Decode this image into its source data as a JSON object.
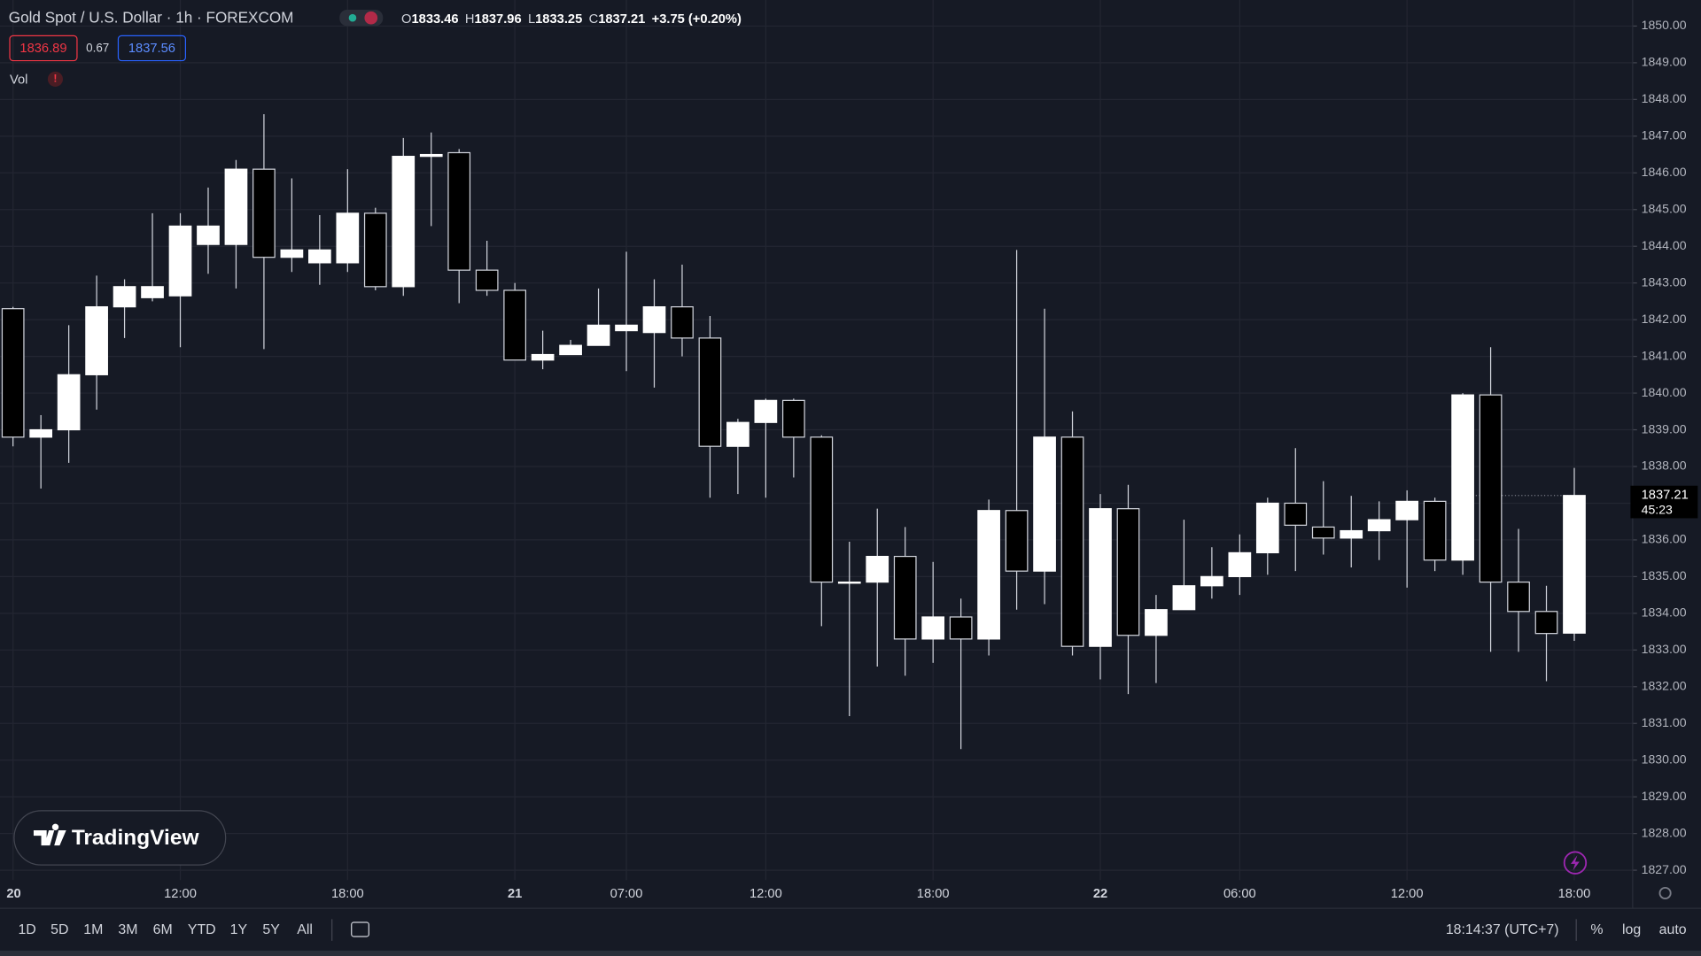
{
  "header": {
    "symbol": "Gold Spot / U.S. Dollar · 1h · FOREXCOM",
    "ohlc": [
      {
        "label": "O",
        "value": "1833.46"
      },
      {
        "label": "H",
        "value": "1837.96"
      },
      {
        "label": "L",
        "value": "1833.25"
      },
      {
        "label": "C",
        "value": "1837.21"
      }
    ],
    "change": "+3.75 (+0.20%)",
    "bid": "1836.89",
    "spread": "0.67",
    "ask": "1837.56",
    "indicator": "Vol"
  },
  "chart_data": {
    "type": "candlestick",
    "categories": [
      "20",
      null,
      null,
      null,
      null,
      null,
      "12:00",
      null,
      null,
      null,
      null,
      null,
      "18:00",
      null,
      null,
      null,
      null,
      null,
      "21",
      null,
      null,
      null,
      "07:00",
      null,
      null,
      null,
      null,
      "12:00",
      null,
      null,
      null,
      null,
      null,
      "18:00",
      null,
      null,
      null,
      null,
      null,
      "22",
      null,
      null,
      null,
      null,
      "06:00",
      null,
      null,
      null,
      null,
      null,
      "12:00",
      null,
      null,
      null,
      null,
      null,
      "18:00"
    ],
    "open": [
      1842.3,
      1838.8,
      1839.0,
      1840.5,
      1842.35,
      1842.6,
      1842.65,
      1844.05,
      1844.05,
      1846.1,
      1843.7,
      1843.55,
      1843.55,
      1844.9,
      1842.9,
      1846.45,
      1846.55,
      1843.35,
      1842.8,
      1840.9,
      1841.05,
      1841.3,
      1841.7,
      1841.65,
      1842.35,
      1841.5,
      1838.55,
      1839.2,
      1839.8,
      1838.8,
      1834.85,
      1834.85,
      1835.55,
      1833.3,
      1833.9,
      1833.3,
      1836.8,
      1835.15,
      1838.8,
      1833.1,
      1836.85,
      1833.4,
      1834.1,
      1834.75,
      1835.0,
      1835.65,
      1837.0,
      1836.35,
      1836.05,
      1836.25,
      1836.55,
      1837.05,
      1835.45,
      1839.95,
      1834.85,
      1834.05,
      1833.46
    ],
    "high": [
      1842.35,
      1839.4,
      1841.85,
      1843.2,
      1843.1,
      1844.9,
      1844.9,
      1845.6,
      1846.35,
      1847.6,
      1845.85,
      1844.85,
      1846.1,
      1845.05,
      1846.95,
      1847.1,
      1846.65,
      1844.15,
      1843.0,
      1841.7,
      1841.45,
      1842.85,
      1843.85,
      1843.1,
      1843.5,
      1842.1,
      1839.3,
      1839.85,
      1839.85,
      1838.85,
      1835.95,
      1836.85,
      1836.35,
      1835.4,
      1834.4,
      1837.1,
      1843.9,
      1842.3,
      1839.5,
      1837.25,
      1837.5,
      1834.5,
      1836.55,
      1835.8,
      1836.15,
      1837.15,
      1838.5,
      1837.6,
      1837.2,
      1837.05,
      1837.35,
      1837.15,
      1840.0,
      1841.25,
      1836.3,
      1834.75,
      1837.96
    ],
    "low": [
      1838.55,
      1837.4,
      1838.1,
      1839.55,
      1841.5,
      1842.5,
      1841.25,
      1843.25,
      1842.85,
      1841.2,
      1843.3,
      1842.95,
      1843.3,
      1842.8,
      1842.65,
      1844.55,
      1842.45,
      1842.65,
      1840.9,
      1840.65,
      1841.05,
      1841.3,
      1840.6,
      1840.15,
      1841.0,
      1837.15,
      1837.25,
      1837.15,
      1837.7,
      1833.65,
      1831.2,
      1832.55,
      1832.3,
      1832.65,
      1830.3,
      1832.85,
      1834.1,
      1834.25,
      1832.85,
      1832.2,
      1831.8,
      1832.1,
      1834.1,
      1834.4,
      1834.5,
      1835.05,
      1835.15,
      1835.6,
      1835.25,
      1835.45,
      1834.7,
      1835.15,
      1835.05,
      1832.95,
      1832.95,
      1832.15,
      1833.25
    ],
    "close": [
      1838.8,
      1839.0,
      1840.5,
      1842.35,
      1842.9,
      1842.9,
      1844.55,
      1844.55,
      1846.1,
      1843.7,
      1843.9,
      1843.9,
      1844.9,
      1842.9,
      1846.45,
      1846.5,
      1843.35,
      1842.8,
      1840.9,
      1841.05,
      1841.3,
      1841.85,
      1841.85,
      1842.35,
      1841.5,
      1838.55,
      1839.2,
      1839.8,
      1838.8,
      1834.85,
      1834.85,
      1835.55,
      1833.3,
      1833.9,
      1833.3,
      1836.8,
      1835.15,
      1838.8,
      1833.1,
      1836.85,
      1833.4,
      1834.1,
      1834.75,
      1835.0,
      1835.65,
      1837.0,
      1836.4,
      1836.05,
      1836.25,
      1836.55,
      1837.05,
      1835.45,
      1839.95,
      1834.85,
      1834.05,
      1833.45,
      1837.21
    ],
    "up_color": "#ffffff",
    "down_color": "#000000",
    "border_color": "#d1d4dc",
    "ylim": [
      1826.73,
      1850.71
    ],
    "yticks": [
      {
        "value": 1827,
        "label": "1827.00"
      },
      {
        "value": 1828,
        "label": "1828.00"
      },
      {
        "value": 1829,
        "label": "1829.00"
      },
      {
        "value": 1830,
        "label": "1830.00"
      },
      {
        "value": 1831,
        "label": "1831.00"
      },
      {
        "value": 1832,
        "label": "1832.00"
      },
      {
        "value": 1833,
        "label": "1833.00"
      },
      {
        "value": 1834,
        "label": "1834.00"
      },
      {
        "value": 1835,
        "label": "1835.00"
      },
      {
        "value": 1836,
        "label": "1836.00"
      },
      {
        "value": 1837,
        "label": "1837.00"
      },
      {
        "value": 1838,
        "label": "1838.00"
      },
      {
        "value": 1839,
        "label": "1839.00"
      },
      {
        "value": 1840,
        "label": "1840.00"
      },
      {
        "value": 1841,
        "label": "1841.00"
      },
      {
        "value": 1842,
        "label": "1842.00"
      },
      {
        "value": 1843,
        "label": "1843.00"
      },
      {
        "value": 1844,
        "label": "1844.00"
      },
      {
        "value": 1845,
        "label": "1845.00"
      },
      {
        "value": 1846,
        "label": "1846.00"
      },
      {
        "value": 1847,
        "label": "1847.00"
      },
      {
        "value": 1848,
        "label": "1848.00"
      },
      {
        "value": 1849,
        "label": "1849.00"
      },
      {
        "value": 1850,
        "label": "1850.00"
      }
    ],
    "grid": true,
    "countdown": "45:23"
  },
  "watermark": "TradingView",
  "toolbar": {
    "ranges": [
      "1D",
      "5D",
      "1M",
      "3M",
      "6M",
      "YTD",
      "1Y",
      "5Y",
      "All"
    ],
    "clock": "18:14:37 (UTC+7)",
    "options": [
      "%",
      "log",
      "auto"
    ]
  }
}
